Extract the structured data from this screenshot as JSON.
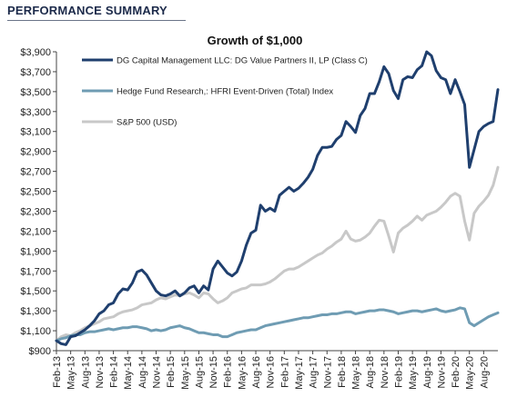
{
  "header": {
    "title": "PERFORMANCE SUMMARY"
  },
  "colors": {
    "dg": "#1f3f6e",
    "hfri": "#6f9cb3",
    "sp500": "#c8c8c8",
    "axis": "#444444"
  },
  "chart_data": {
    "type": "line",
    "title": "Growth of $1,000",
    "xlabel": "",
    "ylabel": "",
    "ylim": [
      900,
      3900
    ],
    "yticks": [
      900,
      1100,
      1300,
      1500,
      1700,
      1900,
      2100,
      2300,
      2500,
      2700,
      2900,
      3100,
      3300,
      3500,
      3700,
      3900
    ],
    "ytick_labels": [
      "$900",
      "$1,100",
      "$1,300",
      "$1,500",
      "$1,700",
      "$1,900",
      "$2,100",
      "$2,300",
      "$2,500",
      "$2,700",
      "$2,900",
      "$3,100",
      "$3,300",
      "$3,500",
      "$3,700",
      "$3,900"
    ],
    "x_start": "Feb-13",
    "x_tick_labels": [
      "Feb-13",
      "May-13",
      "Aug-13",
      "Nov-13",
      "Feb-14",
      "May-14",
      "Aug-14",
      "Nov-14",
      "Feb-15",
      "May-15",
      "Aug-15",
      "Nov-15",
      "Feb-16",
      "May-16",
      "Aug-16",
      "Nov-16",
      "Feb-17",
      "May-17",
      "Aug-17",
      "Nov-17",
      "Feb-18",
      "May-18",
      "Aug-18",
      "Nov-18",
      "Feb-19",
      "May-19",
      "Aug-19",
      "Nov-19",
      "Feb-20",
      "May-20",
      "Aug-20"
    ],
    "grid": false,
    "legend_position": "top-left",
    "series": [
      {
        "name": "DG Capital Management LLC: DG Value Partners II, LP (Class C)",
        "values": [
          1000,
          970,
          960,
          1040,
          1050,
          1080,
          1110,
          1150,
          1200,
          1270,
          1300,
          1360,
          1380,
          1470,
          1520,
          1510,
          1580,
          1690,
          1710,
          1660,
          1580,
          1500,
          1460,
          1450,
          1470,
          1500,
          1450,
          1480,
          1530,
          1550,
          1480,
          1550,
          1510,
          1720,
          1800,
          1740,
          1680,
          1650,
          1690,
          1800,
          1960,
          2080,
          2110,
          2360,
          2300,
          2330,
          2300,
          2460,
          2500,
          2540,
          2500,
          2530,
          2580,
          2640,
          2720,
          2860,
          2940,
          2940,
          2950,
          3020,
          3060,
          3200,
          3150,
          3090,
          3260,
          3330,
          3480,
          3480,
          3600,
          3750,
          3680,
          3510,
          3430,
          3620,
          3650,
          3640,
          3720,
          3760,
          3900,
          3860,
          3710,
          3640,
          3620,
          3480,
          3620,
          3500,
          3370,
          2740,
          2920,
          3100,
          3150,
          3180,
          3200,
          3520
        ]
      },
      {
        "name": "Hedge Fund Research,: HFRI Event-Driven (Total) Index",
        "values": [
          1000,
          1020,
          1030,
          1050,
          1060,
          1060,
          1080,
          1090,
          1090,
          1100,
          1110,
          1120,
          1110,
          1120,
          1130,
          1130,
          1140,
          1140,
          1130,
          1120,
          1100,
          1110,
          1100,
          1110,
          1130,
          1140,
          1150,
          1130,
          1120,
          1100,
          1080,
          1080,
          1070,
          1060,
          1060,
          1040,
          1040,
          1060,
          1080,
          1090,
          1100,
          1110,
          1110,
          1130,
          1150,
          1160,
          1170,
          1180,
          1190,
          1200,
          1210,
          1220,
          1230,
          1230,
          1240,
          1250,
          1260,
          1260,
          1270,
          1270,
          1280,
          1290,
          1290,
          1270,
          1280,
          1290,
          1300,
          1300,
          1310,
          1310,
          1300,
          1290,
          1270,
          1280,
          1290,
          1300,
          1300,
          1290,
          1300,
          1310,
          1320,
          1300,
          1290,
          1300,
          1310,
          1330,
          1320,
          1180,
          1150,
          1180,
          1210,
          1240,
          1260,
          1280
        ]
      },
      {
        "name": "S&P 500 (USD)",
        "values": [
          1000,
          1040,
          1060,
          1050,
          1080,
          1100,
          1130,
          1150,
          1170,
          1190,
          1220,
          1230,
          1240,
          1270,
          1290,
          1300,
          1310,
          1330,
          1360,
          1370,
          1380,
          1410,
          1430,
          1420,
          1440,
          1460,
          1450,
          1470,
          1480,
          1460,
          1430,
          1480,
          1470,
          1420,
          1380,
          1400,
          1430,
          1480,
          1500,
          1520,
          1530,
          1560,
          1560,
          1560,
          1570,
          1590,
          1620,
          1660,
          1700,
          1720,
          1720,
          1740,
          1770,
          1800,
          1830,
          1860,
          1880,
          1920,
          1950,
          1990,
          2020,
          2100,
          2020,
          2000,
          2010,
          2040,
          2080,
          2150,
          2210,
          2200,
          2050,
          1890,
          2080,
          2130,
          2160,
          2200,
          2250,
          2210,
          2260,
          2280,
          2300,
          2340,
          2390,
          2450,
          2480,
          2450,
          2200,
          2010,
          2280,
          2350,
          2400,
          2460,
          2560,
          2740
        ]
      }
    ]
  }
}
